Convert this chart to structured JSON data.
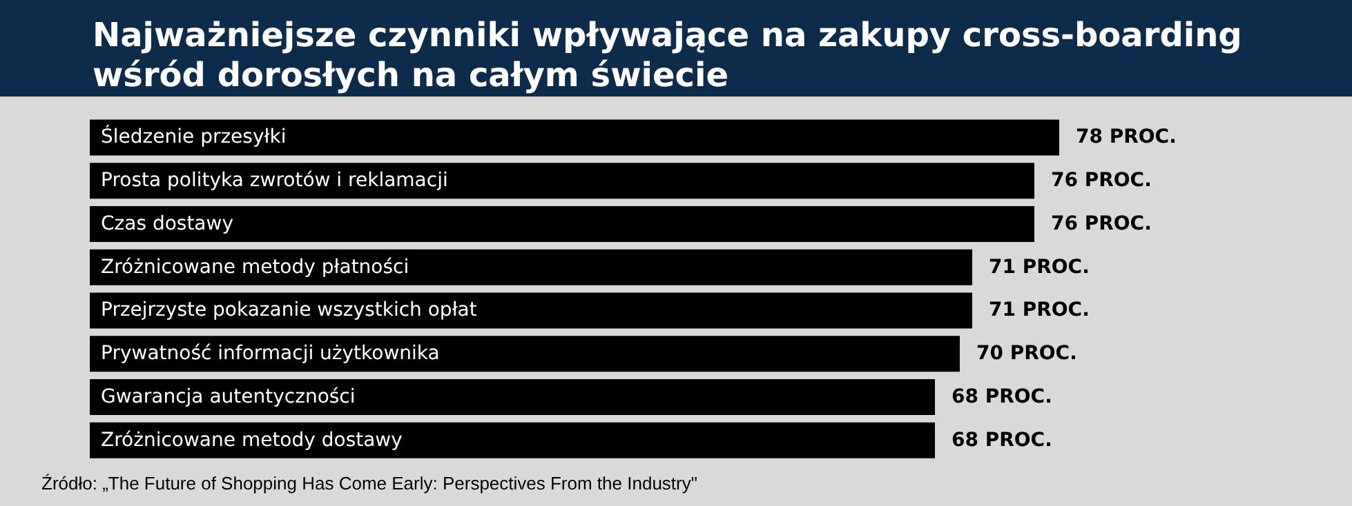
{
  "chart_data": {
    "type": "bar",
    "orientation": "horizontal",
    "title": "Najważniejsze czynniki wpływające na zakupy cross-boarding\nwśród dorosłych na całym świecie",
    "categories": [
      "Śledzenie przesyłki",
      "Prosta polityka zwrotów i reklamacji",
      "Czas dostawy",
      "Zróżnicowane metody płatności",
      "Przejrzyste pokazanie wszystkich opłat",
      "Prywatność informacji użytkownika",
      "Gwarancja autentyczności",
      "Zróżnicowane metody dostawy"
    ],
    "values": [
      78,
      76,
      76,
      71,
      71,
      70,
      68,
      68
    ],
    "value_labels": [
      "78 PROC.",
      "76 PROC.",
      "76 PROC.",
      "71 PROC.",
      "71 PROC.",
      "70 PROC.",
      "68 PROC.",
      "68 PROC."
    ],
    "color": "#000000",
    "annotations": [
      "Źródło: „The Future of Shopping Has Come Early: Perspectives From the Industry\""
    ]
  }
}
